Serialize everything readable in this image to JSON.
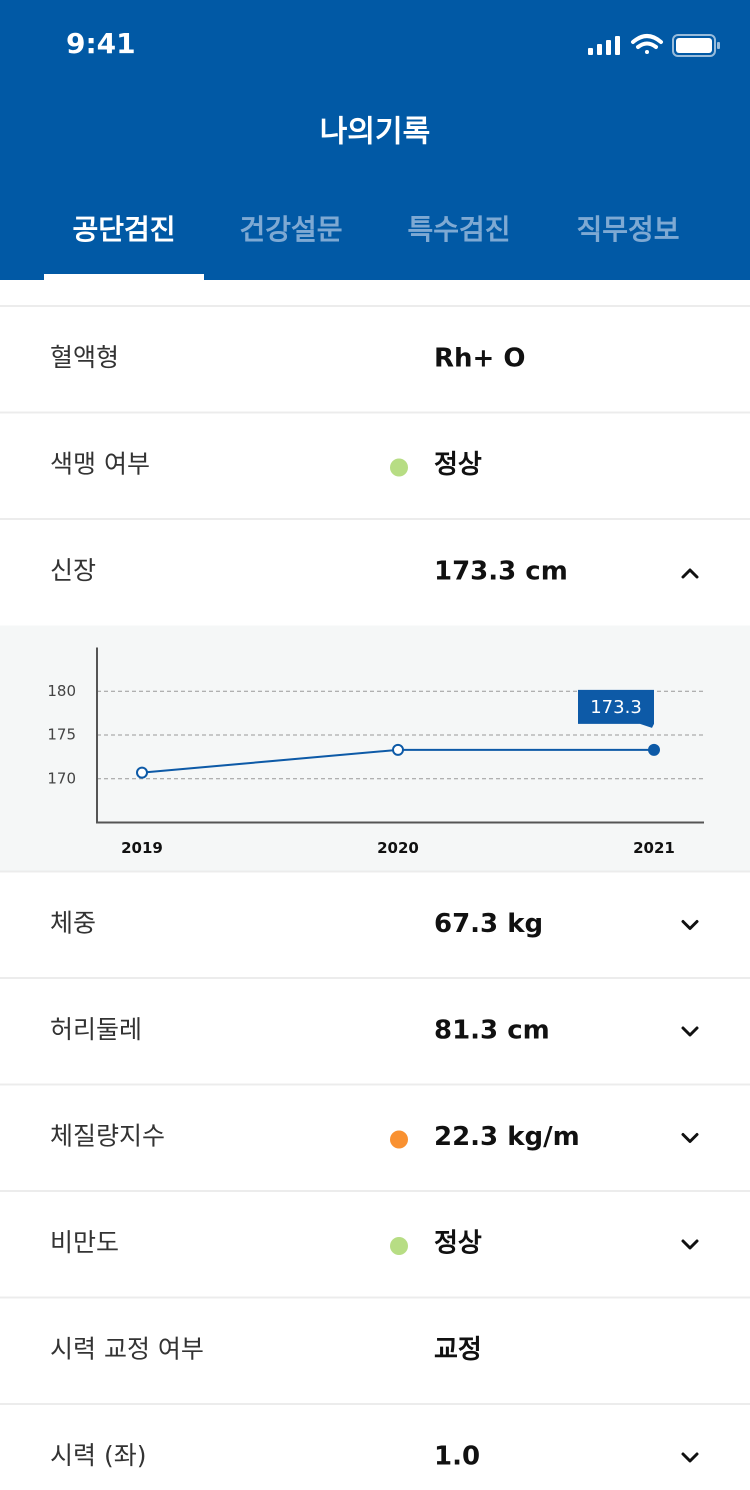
{
  "status_bar": {
    "time": "9:41"
  },
  "header": {
    "title": "나의기록"
  },
  "tabs": {
    "items": [
      "공단검진",
      "건강설문",
      "특수검진",
      "직무정보"
    ],
    "active": 0
  },
  "rows": [
    {
      "label": "혈액형",
      "value": "Rh+ O"
    },
    {
      "label": "색맹 여부",
      "value": "정상",
      "status_color": "#b7dd84"
    },
    {
      "label": "신장",
      "value": "173.3 cm",
      "expanded": true
    },
    {
      "label": "체중",
      "value": "67.3 kg",
      "expanded": false
    },
    {
      "label": "허리둘레",
      "value": "81.3 cm",
      "expanded": false
    },
    {
      "label": "체질량지수",
      "value": "22.3 kg/m",
      "status_color": "#f99131",
      "expanded": false
    },
    {
      "label": "비만도",
      "value": "정상",
      "status_color": "#b7dd84",
      "expanded": false
    },
    {
      "label": "시력 교정 여부",
      "value": "교정"
    },
    {
      "label": "시력 (좌)",
      "value": "1.0",
      "expanded": false
    }
  ],
  "chart_data": {
    "type": "line",
    "categories": [
      "2019",
      "2020",
      "2021"
    ],
    "series": [
      {
        "color": "#0d5aa7",
        "values": [
          170.7,
          173.3,
          173.3
        ]
      }
    ],
    "ylim": [
      165,
      185
    ],
    "yticks": [
      170,
      175,
      180
    ],
    "grid": true
  }
}
